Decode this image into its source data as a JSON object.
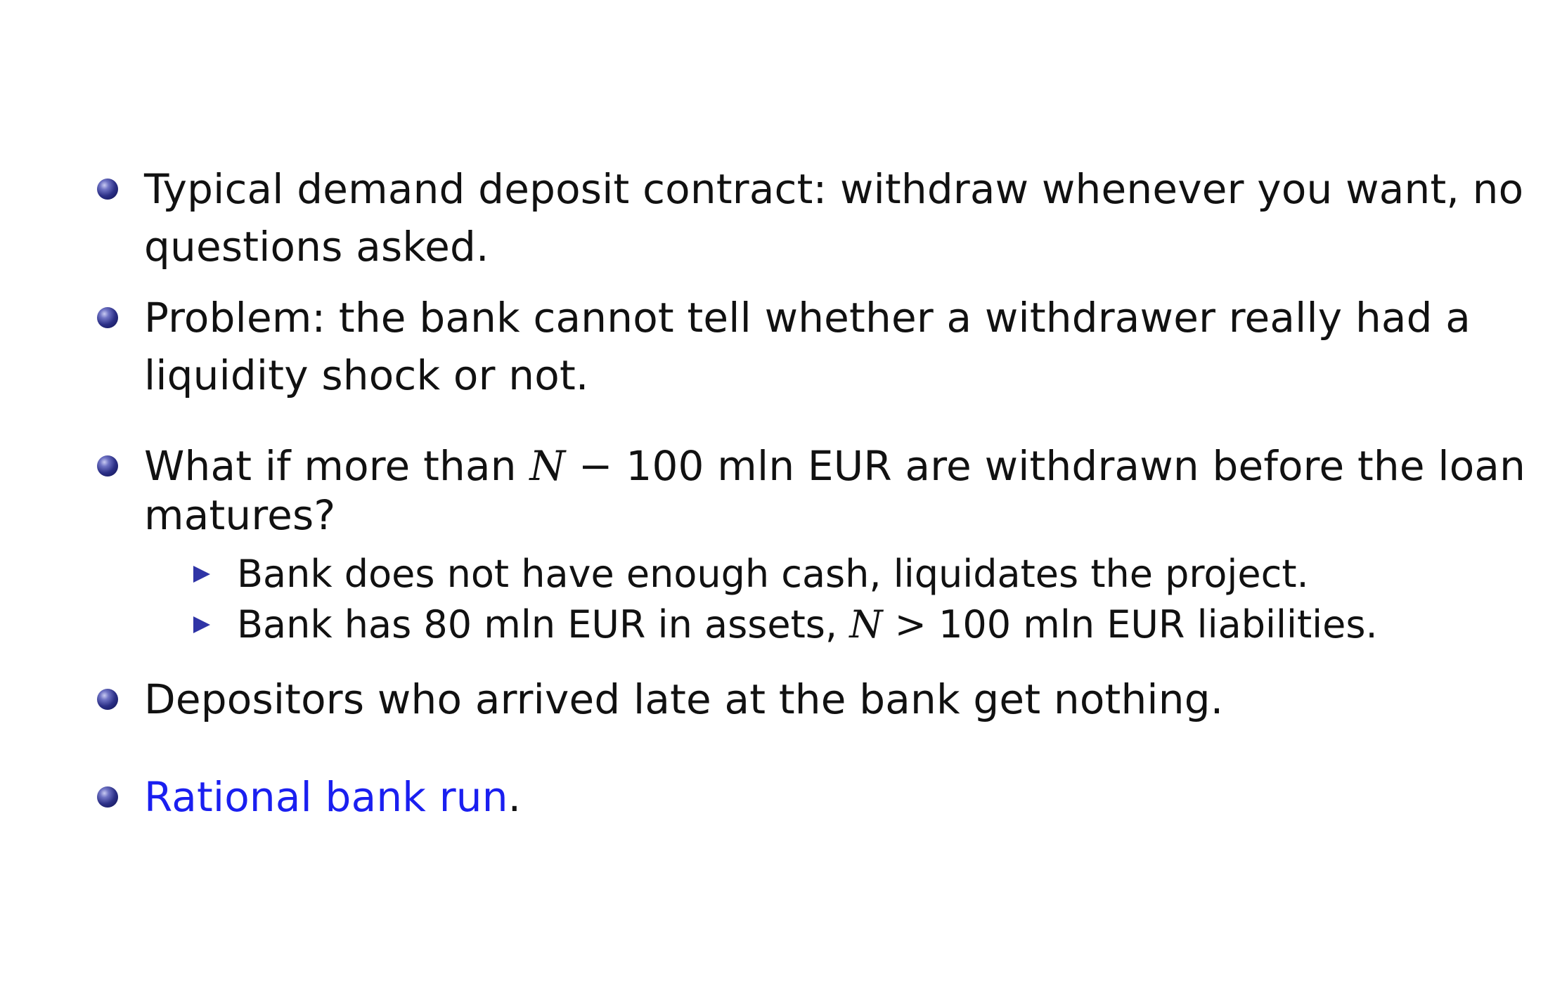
{
  "bullets": [
    {
      "line1": "Typical demand deposit contract: withdraw whenever you want, no",
      "line2": "questions asked."
    },
    {
      "line1": "Problem: the bank cannot tell whether a withdrawer really had a",
      "line2": "liquidity shock or not."
    },
    {
      "pre": "What if more than ",
      "var": "N",
      "op": " − ",
      "post": "100 mln EUR are withdrawn before the loan",
      "line2": "matures?"
    },
    {
      "line1": "Depositors who arrived late at the bank get nothing."
    },
    {
      "highlight": "Rational bank run",
      "post": "."
    }
  ],
  "subbullets": [
    {
      "text": "Bank does not have enough cash, liquidates the project."
    },
    {
      "pre": "Bank has 80 mln EUR in assets, ",
      "var": "N",
      "op": " > ",
      "post": "100 mln EUR liabilities."
    }
  ]
}
